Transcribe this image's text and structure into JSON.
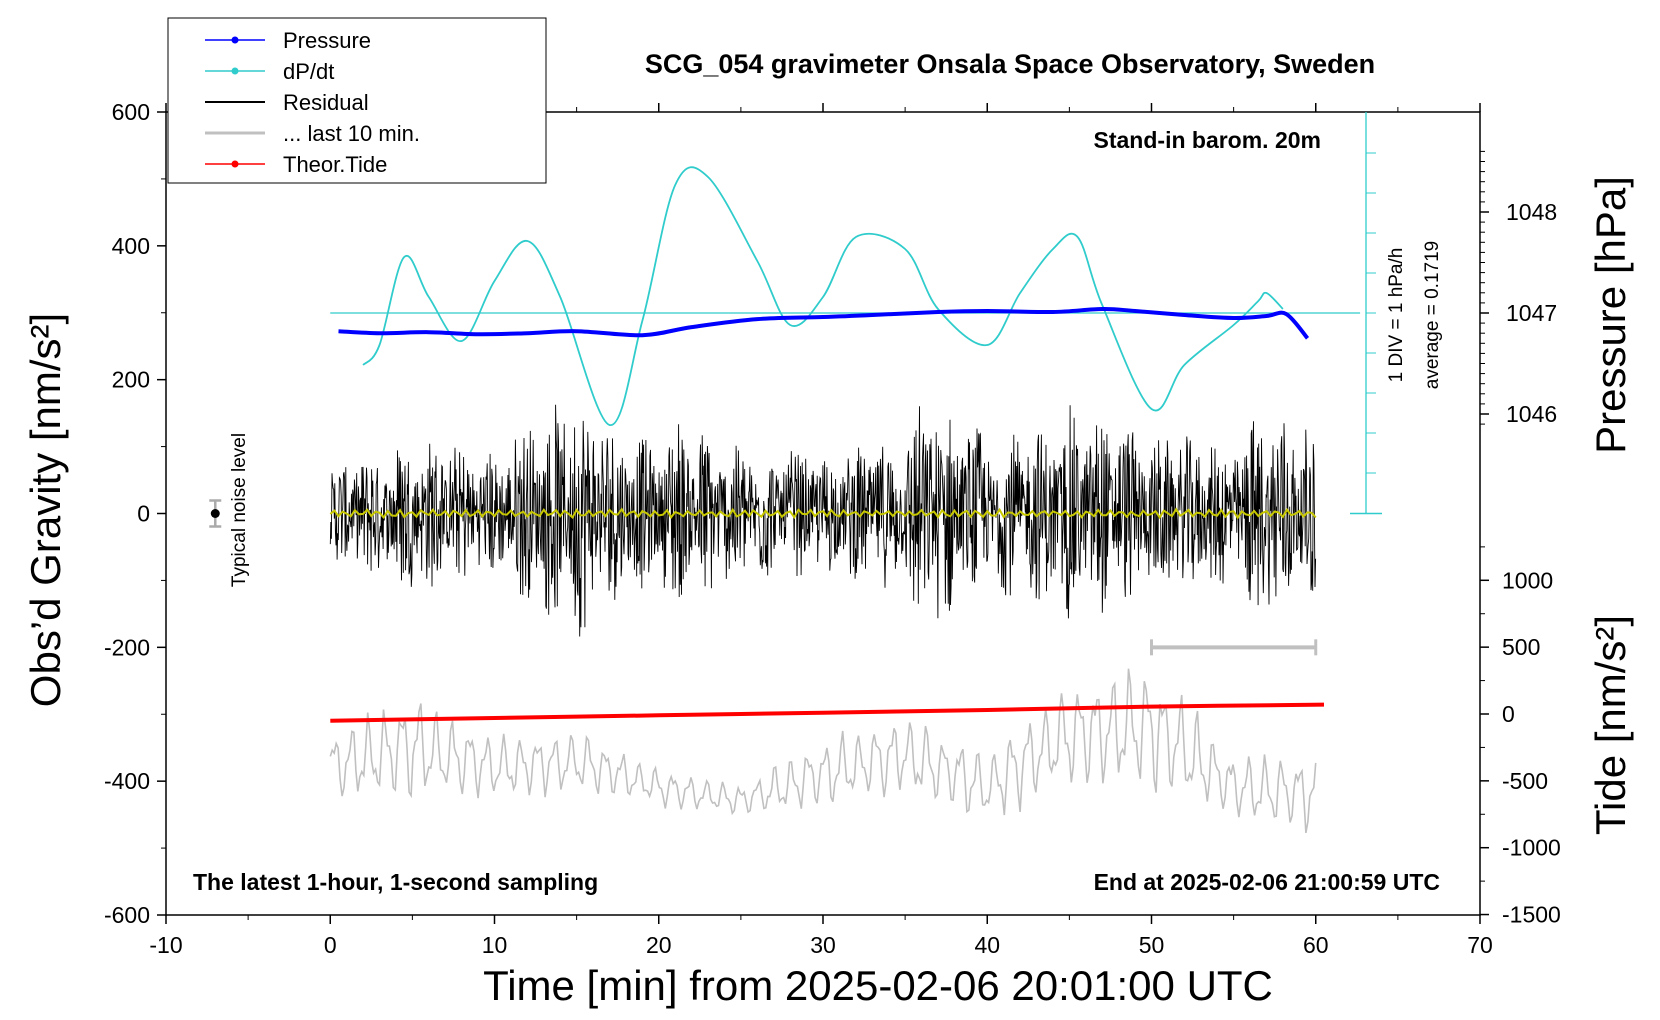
{
  "chart_data": {
    "type": "line",
    "title": "SCG_054 gravimeter Onsala Space Observatory, Sweden",
    "xlabel": "Time [min] from 2025-02-06 20:01:00 UTC",
    "ylabel_left": "Obs’d Gravity [nm/s²]",
    "ylabel_right_pressure": "Pressure [hPa]",
    "ylabel_right_tide": "Tide [nm/s²]",
    "xlim": [
      -10,
      70
    ],
    "ylim_left": [
      -600,
      600
    ],
    "x_ticks": [
      "-10",
      "0",
      "10",
      "20",
      "30",
      "40",
      "50",
      "60",
      "70"
    ],
    "y_ticks_left": [
      "600",
      "400",
      "200",
      "0",
      "-200",
      "-400",
      "-600"
    ],
    "pressure_ticks": [
      "1048",
      "1047",
      "1046"
    ],
    "tide_ticks": [
      "1000",
      "500",
      "0",
      "-500",
      "-1000",
      "-1500"
    ],
    "annotations": {
      "barometer": "Stand-in barom. 20m",
      "dpdt_scale": "1 DIV = 1 hPa/h",
      "dpdt_average": "average = 0.1719",
      "noise": "Typical noise level",
      "sampling": "The latest 1-hour, 1-second sampling",
      "end_time": "End at 2025-02-06 21:00:59 UTC"
    },
    "legend": [
      {
        "label": "Pressure",
        "color": "#0000ff"
      },
      {
        "label": "dP/dt",
        "color": "#30cccc"
      },
      {
        "label": "Residual",
        "color": "#000000"
      },
      {
        "label": "... last 10 min.",
        "color": "#c0c0c0"
      },
      {
        "label": "Theor.Tide",
        "color": "#ff0000"
      }
    ],
    "series": [
      {
        "name": "Pressure",
        "unit": "hPa",
        "x": [
          0.5,
          3,
          6,
          9,
          12,
          15,
          19,
          22,
          26,
          30,
          33,
          37,
          40,
          44,
          47,
          49,
          52,
          55,
          57,
          58.2,
          59.5
        ],
        "values": [
          1046.82,
          1046.8,
          1046.81,
          1046.79,
          1046.8,
          1046.82,
          1046.78,
          1046.86,
          1046.94,
          1046.96,
          1046.98,
          1047.01,
          1047.02,
          1047.01,
          1047.04,
          1047.02,
          1046.98,
          1046.95,
          1046.97,
          1046.99,
          1046.75
        ]
      },
      {
        "name": "dP/dt",
        "unit": "hPa/h (offset from average 0.1719)",
        "x": [
          2,
          3,
          4.5,
          6,
          8,
          10,
          12,
          14,
          17,
          19,
          21,
          23,
          26,
          28,
          30,
          32,
          35,
          37,
          40,
          42,
          44,
          45.5,
          47,
          50,
          52,
          55,
          56.5,
          57,
          58
        ],
        "values": [
          -1.3,
          -0.8,
          1.4,
          0.4,
          -0.7,
          0.8,
          1.8,
          0.4,
          -2.8,
          -0.2,
          3.2,
          3.4,
          1.3,
          -0.3,
          0.4,
          1.9,
          1.6,
          0.1,
          -0.8,
          0.5,
          1.6,
          1.9,
          0.2,
          -2.4,
          -1.3,
          -0.3,
          0.3,
          0.5,
          0.1
        ]
      },
      {
        "name": "Residual",
        "unit": "nm/s²",
        "x": [
          0,
          5,
          10,
          12,
          15,
          18,
          20,
          21,
          25,
          30,
          35,
          36,
          40,
          43,
          45,
          47,
          50,
          55,
          57,
          60
        ],
        "values": [
          0,
          0,
          0,
          0,
          0,
          0,
          0,
          0,
          0,
          0,
          0,
          0,
          0,
          0,
          0,
          0,
          0,
          0,
          0,
          0
        ],
        "envelope": [
          75,
          120,
          95,
          140,
          190,
          120,
          110,
          155,
          105,
          90,
          120,
          195,
          120,
          130,
          165,
          150,
          120,
          110,
          170,
          120
        ]
      },
      {
        "name": "... last 10 min.",
        "unit": "nm/s² (tide scale)",
        "x": [
          0,
          5,
          10,
          15,
          20,
          25,
          30,
          35,
          40,
          45,
          50,
          55,
          60
        ],
        "values": [
          -400,
          -250,
          -400,
          -350,
          -550,
          -650,
          -450,
          -300,
          -550,
          -150,
          -100,
          -550,
          -600
        ],
        "amplitude": [
          550,
          850,
          500,
          500,
          300,
          250,
          550,
          650,
          550,
          900,
          1000,
          500,
          650
        ]
      },
      {
        "name": "Theor.Tide",
        "unit": "nm/s²",
        "x": [
          0,
          10,
          20,
          30,
          40,
          50,
          60.5
        ],
        "values": [
          -50,
          -30,
          -10,
          10,
          30,
          55,
          70
        ]
      }
    ]
  }
}
